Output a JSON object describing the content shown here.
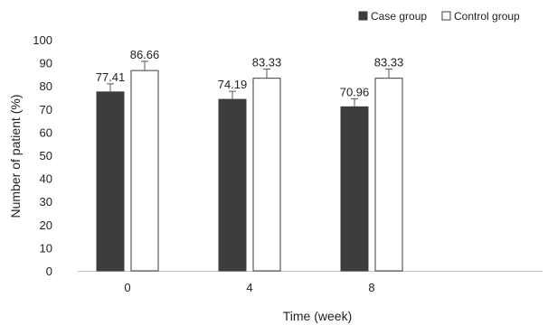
{
  "chart_data": {
    "type": "bar",
    "categories": [
      "0",
      "4",
      "8"
    ],
    "series": [
      {
        "name": "Case group",
        "values": [
          77.41,
          74.19,
          70.96
        ],
        "labels": [
          "77.41",
          "74.19",
          "70.96"
        ],
        "error": [
          3.5,
          3.5,
          3.5
        ],
        "color": "#3d3d3d"
      },
      {
        "name": "Control group",
        "values": [
          86.66,
          83.33,
          83.33
        ],
        "labels": [
          "86.66",
          "83.33",
          "83.33"
        ],
        "error": [
          4.0,
          4.0,
          4.0
        ],
        "color": "#ffffff"
      }
    ],
    "xlabel": "Time (week)",
    "ylabel": "Number of patient (%)",
    "ylim": [
      0,
      100
    ],
    "yticks": [
      "0",
      "10",
      "20",
      "30",
      "40",
      "50",
      "60",
      "70",
      "80",
      "90",
      "100"
    ],
    "grid": false,
    "legend": "top-right"
  }
}
